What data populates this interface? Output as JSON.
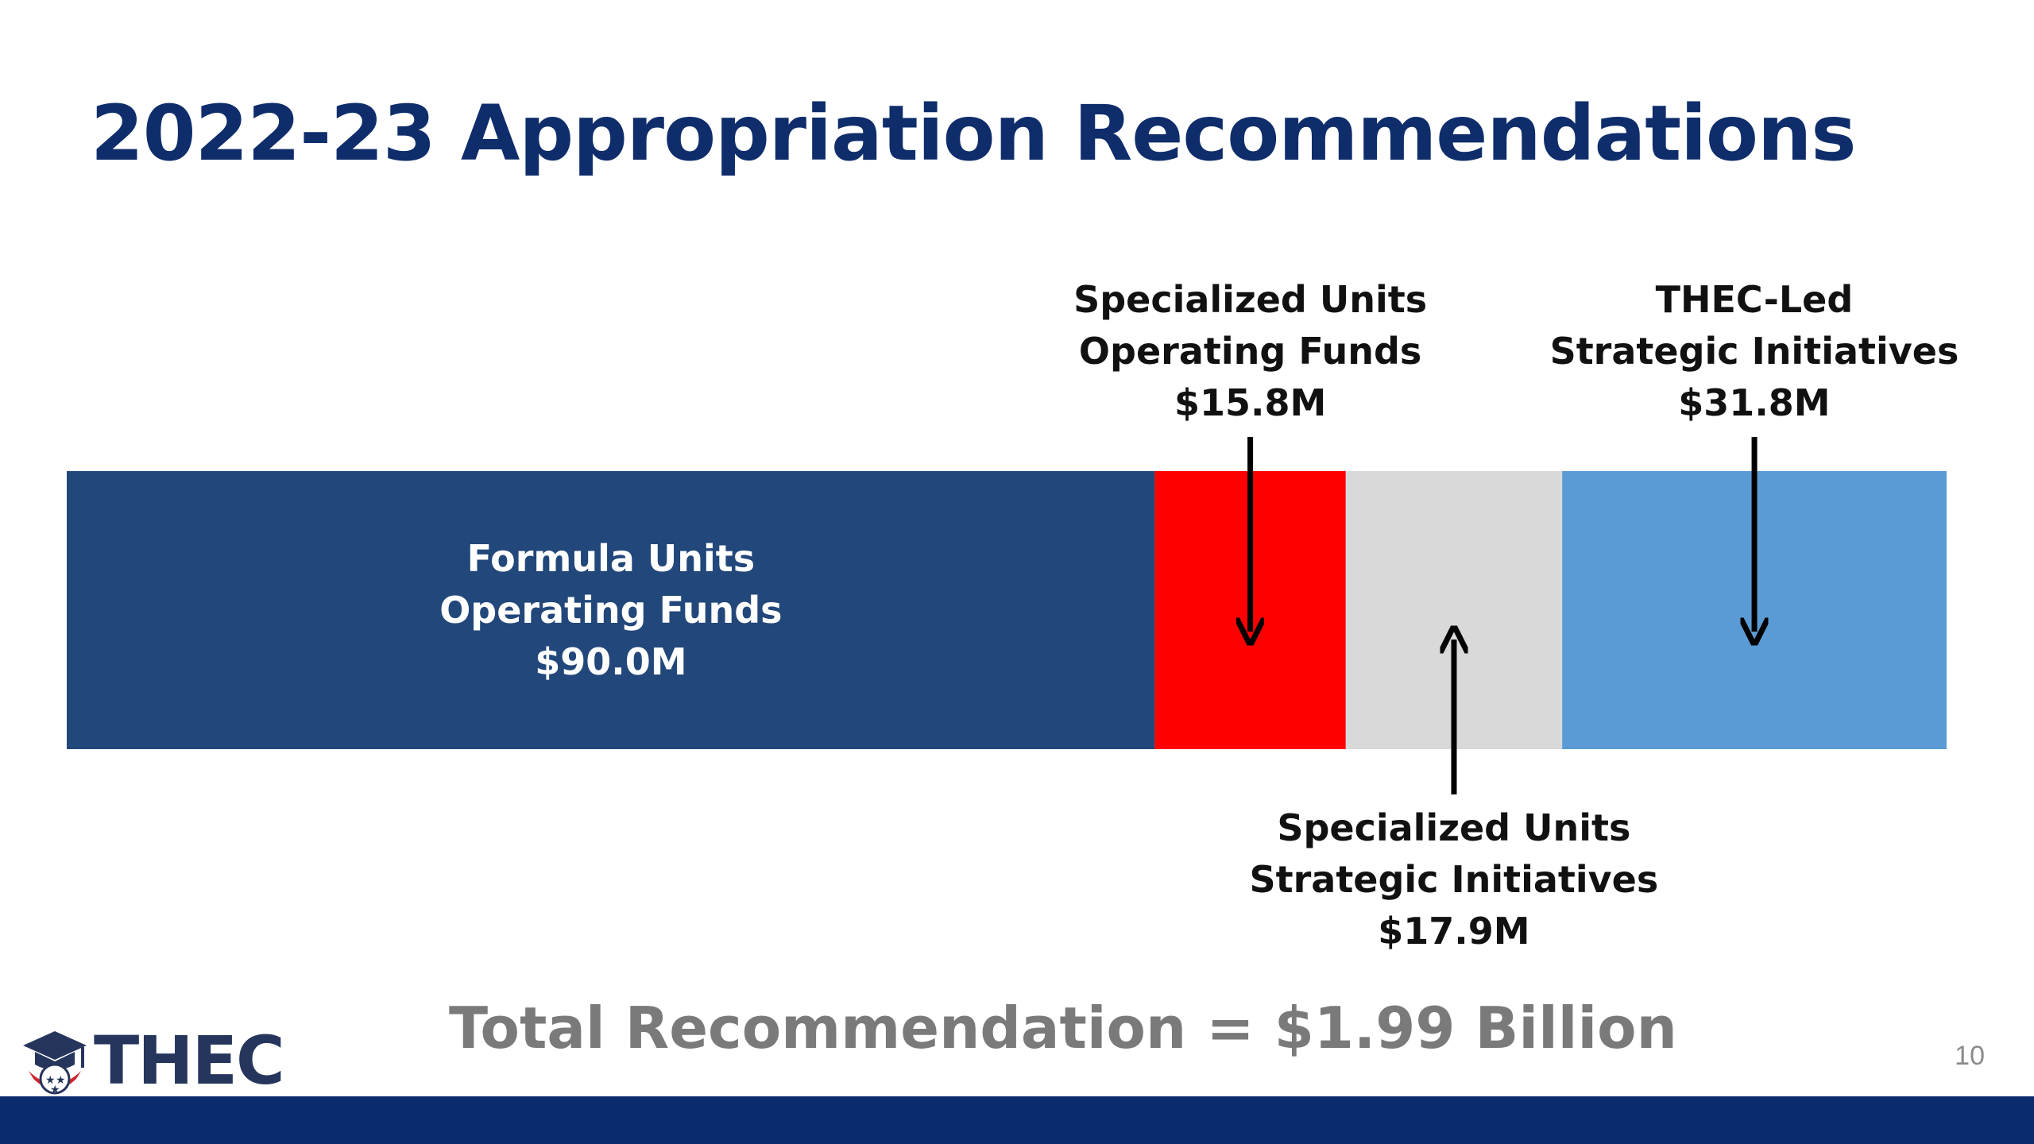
{
  "slide": {
    "title": "2022-23 Appropriation Recommendations",
    "total": "Total Recommendation = $1.99 Billion",
    "page_number": "10",
    "logo_text": "THEC"
  },
  "chart_data": {
    "type": "bar",
    "stacked": true,
    "orientation": "horizontal",
    "xlim": [
      0,
      155.5
    ],
    "categories": [
      "Formula Units Operating Funds",
      "Specialized Units Operating Funds",
      "Specialized Units Strategic Initiatives",
      "THEC-Led Strategic Initiatives"
    ],
    "values": [
      90.0,
      15.8,
      17.9,
      31.8
    ],
    "unit": "$M",
    "colors": [
      "#22477a",
      "#ff0000",
      "#d9d9d9",
      "#5b9bd5"
    ],
    "labels": [
      {
        "lines": [
          "Formula Units",
          "Operating Funds",
          "$90.0M"
        ],
        "position": "inside"
      },
      {
        "lines": [
          "Specialized Units",
          "Operating Funds",
          "$15.8M"
        ],
        "position": "above"
      },
      {
        "lines": [
          "Specialized Units",
          "Strategic Initiatives",
          "$17.9M"
        ],
        "position": "below"
      },
      {
        "lines": [
          "THEC-Led",
          "Strategic Initiatives",
          "$31.8M"
        ],
        "position": "above"
      }
    ],
    "grid": false,
    "legend": "none"
  }
}
